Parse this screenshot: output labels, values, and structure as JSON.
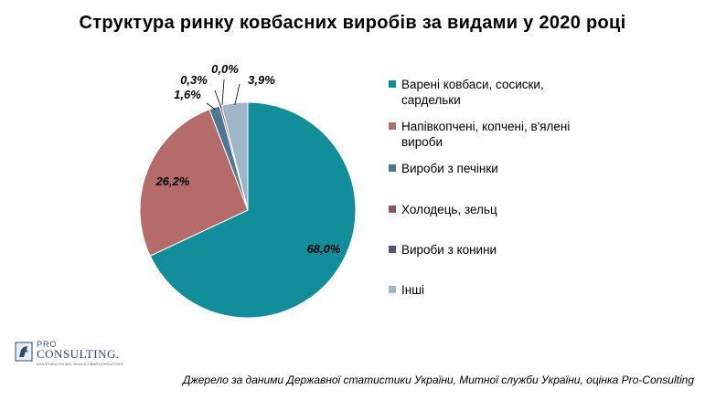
{
  "chart_data": {
    "type": "pie",
    "title": "Структура ринку ковбасних виробів за видами у 2020 році",
    "value_format": "%",
    "slices": [
      {
        "label": "Варені ковбаси, сосиски, сардельки",
        "value": 68.0,
        "display": "68,0%",
        "color": "#128e9b"
      },
      {
        "label": "Напівкопчені, копчені, в'ялені вироби",
        "value": 26.2,
        "display": "26,2%",
        "color": "#b66b6b"
      },
      {
        "label": "Вироби з печінки",
        "value": 1.6,
        "display": "1,6%",
        "color": "#4e7793"
      },
      {
        "label": "Холодець, зельц",
        "value": 0.3,
        "display": "0,3%",
        "color": "#8c5a5a"
      },
      {
        "label": "Вироби з конини",
        "value": 0.0,
        "display": "0,0%",
        "color": "#555a66"
      },
      {
        "label": "Інші",
        "value": 3.9,
        "display": "3,9%",
        "color": "#9fb6c9"
      }
    ],
    "legend_position": "right"
  },
  "source_note": "Джерело за даними Державної статистики України, Митної служби України, оцінка Pro-Consulting",
  "logo": {
    "pro": "PRO",
    "name": "CONSULTING.",
    "tagline": "АНАЛІТИКА РИНКІВ. ФІНАНСОВИЙ КОНСАЛТИНГ"
  }
}
